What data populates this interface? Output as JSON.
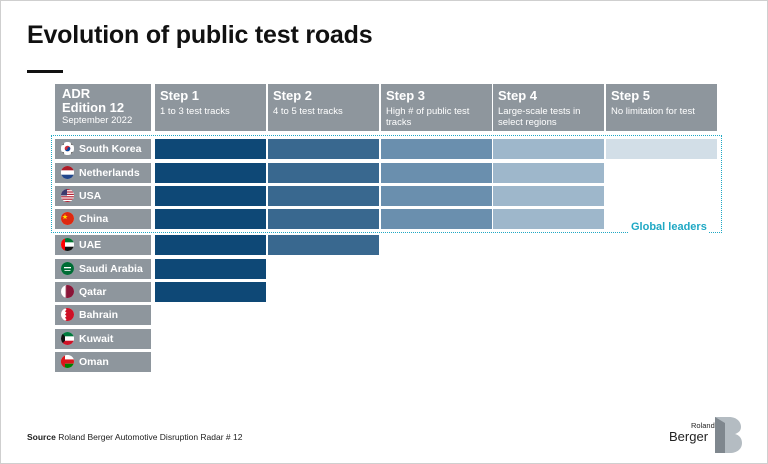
{
  "title": "Evolution of public test roads",
  "corner": {
    "line1": "ADR",
    "line2": "Edition 12",
    "line3": "September 2022"
  },
  "steps": [
    {
      "name": "Step 1",
      "desc": "1 to 3 test tracks"
    },
    {
      "name": "Step 2",
      "desc": "4 to 5 test tracks"
    },
    {
      "name": "Step 3",
      "desc": "High # of public test\ntracks"
    },
    {
      "name": "Step 4",
      "desc": "Large-scale tests in\nselect regions"
    },
    {
      "name": "Step 5",
      "desc": "No limitation for test"
    }
  ],
  "countries": [
    {
      "name": "South Korea",
      "flag": "south-korea"
    },
    {
      "name": "Netherlands",
      "flag": "netherlands"
    },
    {
      "name": "USA",
      "flag": "usa"
    },
    {
      "name": "China",
      "flag": "china"
    },
    {
      "name": "UAE",
      "flag": "uae"
    },
    {
      "name": "Saudi Arabia",
      "flag": "saudi-arabia"
    },
    {
      "name": "Qatar",
      "flag": "qatar"
    },
    {
      "name": "Bahrain",
      "flag": "bahrain"
    },
    {
      "name": "Kuwait",
      "flag": "kuwait"
    },
    {
      "name": "Oman",
      "flag": "oman"
    }
  ],
  "chart_data": {
    "type": "table",
    "categories": [
      "South Korea",
      "Netherlands",
      "USA",
      "China",
      "UAE",
      "Saudi Arabia",
      "Qatar",
      "Bahrain",
      "Kuwait",
      "Oman"
    ],
    "columns": [
      "Step 1",
      "Step 2",
      "Step 3",
      "Step 4",
      "Step 5"
    ],
    "values": [
      5,
      4,
      4,
      4,
      2,
      1,
      1,
      0,
      0,
      0
    ],
    "colors": [
      "#0e4876",
      "#39688f",
      "#6a8fae",
      "#9eb7cb",
      "#d2dee7"
    ],
    "annotation": "Global leaders",
    "annotation_group": [
      "South Korea",
      "Netherlands",
      "USA",
      "China"
    ]
  },
  "source": {
    "label": "Source",
    "text": "Roland Berger Automotive Disruption Radar # 12"
  },
  "brand": {
    "line1": "Roland",
    "line2": "Berger"
  }
}
